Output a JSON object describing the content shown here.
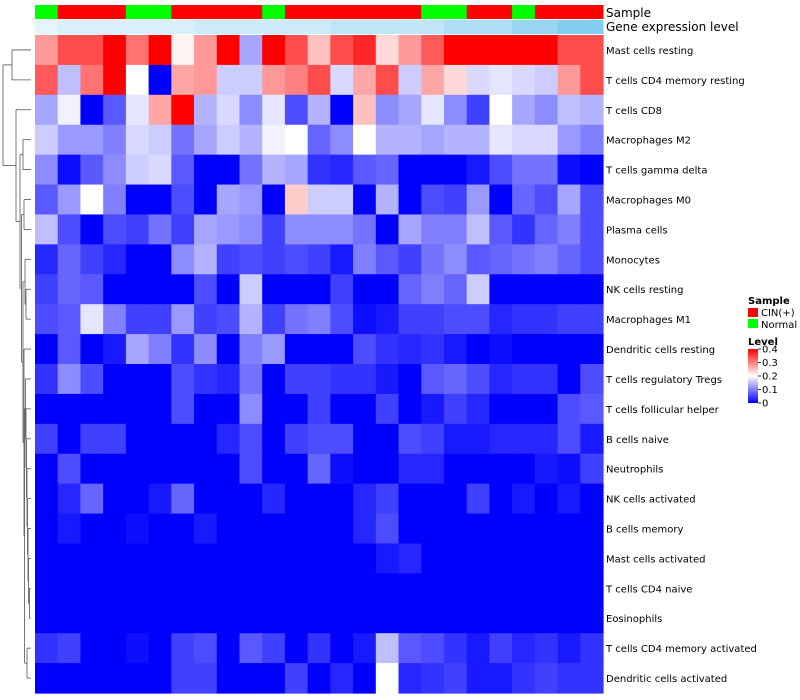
{
  "chart_data": {
    "type": "heatmap",
    "title": "",
    "annotation_tracks": [
      "Sample",
      "Gene expression level"
    ],
    "sample_groups": [
      "Normal",
      "CIN(+)",
      "CIN(+)",
      "CIN(+)",
      "Normal",
      "Normal",
      "CIN(+)",
      "CIN(+)",
      "CIN(+)",
      "CIN(+)",
      "Normal",
      "CIN(+)",
      "CIN(+)",
      "CIN(+)",
      "CIN(+)",
      "CIN(+)",
      "CIN(+)",
      "Normal",
      "Normal",
      "CIN(+)",
      "CIN(+)",
      "Normal",
      "CIN(+)",
      "CIN(+)",
      "CIN(+)"
    ],
    "expression_level_shades": [
      0.06,
      0.14,
      0.14,
      0.14,
      0.14,
      0.14,
      0.14,
      0.22,
      0.22,
      0.22,
      0.22,
      0.22,
      0.22,
      0.3,
      0.3,
      0.3,
      0.3,
      0.3,
      0.42,
      0.42,
      0.42,
      0.55,
      0.55,
      0.68,
      0.68
    ],
    "rows": [
      "Mast cells resting",
      "T cells CD4 memory resting",
      "T cells CD8",
      "Macrophages M2",
      "T cells gamma delta",
      "Macrophages M0",
      "Plasma cells",
      "Monocytes",
      "NK cells resting",
      "Macrophages M1",
      "Dendritic cells resting",
      "T cells regulatory  Tregs",
      "T cells follicular helper",
      "B cells naive",
      "Neutrophils",
      "NK cells activated",
      "B cells memory",
      "Mast cells activated",
      "T cells CD4 naive",
      "Eosinophils",
      "T cells CD4 memory activated",
      "Dendritic cells activated"
    ],
    "values": [
      [
        0.28,
        0.34,
        0.34,
        0.4,
        0.31,
        0.4,
        0.21,
        0.28,
        0.4,
        0.13,
        0.4,
        0.34,
        0.25,
        0.34,
        0.37,
        0.23,
        0.28,
        0.33,
        0.4,
        0.4,
        0.4,
        0.4,
        0.4,
        0.34,
        0.34
      ],
      [
        0.33,
        0.15,
        0.31,
        0.4,
        0.2,
        0.0,
        0.27,
        0.28,
        0.16,
        0.16,
        0.28,
        0.3,
        0.34,
        0.17,
        0.27,
        0.34,
        0.16,
        0.27,
        0.23,
        0.17,
        0.18,
        0.17,
        0.16,
        0.28,
        0.34
      ],
      [
        0.13,
        0.19,
        0.0,
        0.07,
        0.18,
        0.27,
        0.4,
        0.14,
        0.17,
        0.11,
        0.18,
        0.06,
        0.14,
        0.0,
        0.25,
        0.11,
        0.13,
        0.18,
        0.11,
        0.05,
        0.2,
        0.13,
        0.11,
        0.15,
        0.14
      ],
      [
        0.16,
        0.12,
        0.12,
        0.1,
        0.17,
        0.16,
        0.09,
        0.13,
        0.16,
        0.14,
        0.19,
        0.2,
        0.08,
        0.11,
        0.2,
        0.14,
        0.14,
        0.13,
        0.14,
        0.14,
        0.18,
        0.17,
        0.17,
        0.12,
        0.1
      ],
      [
        0.11,
        0.01,
        0.07,
        0.11,
        0.16,
        0.17,
        0.07,
        0.0,
        0.0,
        0.09,
        0.14,
        0.13,
        0.04,
        0.03,
        0.07,
        0.08,
        0.0,
        0.0,
        0.0,
        0.02,
        0.06,
        0.09,
        0.09,
        0.01,
        0.0
      ],
      [
        0.07,
        0.12,
        0.2,
        0.1,
        0.0,
        0.0,
        0.06,
        0.0,
        0.13,
        0.12,
        0.0,
        0.24,
        0.16,
        0.16,
        0.0,
        0.14,
        0.0,
        0.06,
        0.05,
        0.12,
        0.0,
        0.08,
        0.06,
        0.13,
        0.06
      ],
      [
        0.15,
        0.06,
        0.0,
        0.06,
        0.05,
        0.09,
        0.05,
        0.13,
        0.12,
        0.11,
        0.05,
        0.11,
        0.11,
        0.11,
        0.09,
        0.0,
        0.13,
        0.1,
        0.1,
        0.15,
        0.07,
        0.04,
        0.08,
        0.1,
        0.06
      ],
      [
        0.03,
        0.08,
        0.05,
        0.03,
        0.0,
        0.0,
        0.11,
        0.14,
        0.05,
        0.06,
        0.05,
        0.06,
        0.05,
        0.02,
        0.1,
        0.07,
        0.05,
        0.09,
        0.11,
        0.07,
        0.08,
        0.09,
        0.1,
        0.08,
        0.06
      ],
      [
        0.05,
        0.08,
        0.07,
        0.0,
        0.0,
        0.0,
        0.0,
        0.06,
        0.0,
        0.16,
        0.0,
        0.0,
        0.0,
        0.05,
        0.0,
        0.0,
        0.08,
        0.1,
        0.08,
        0.16,
        0.0,
        0.0,
        0.0,
        0.0,
        0.0
      ],
      [
        0.06,
        0.07,
        0.18,
        0.1,
        0.05,
        0.05,
        0.12,
        0.05,
        0.06,
        0.14,
        0.05,
        0.09,
        0.1,
        0.06,
        0.01,
        0.02,
        0.05,
        0.05,
        0.06,
        0.06,
        0.03,
        0.04,
        0.04,
        0.05,
        0.05
      ],
      [
        0.0,
        0.07,
        0.0,
        0.02,
        0.13,
        0.1,
        0.04,
        0.11,
        0.0,
        0.1,
        0.12,
        0.0,
        0.0,
        0.0,
        0.06,
        0.04,
        0.03,
        0.04,
        0.02,
        0.0,
        0.01,
        0.0,
        0.0,
        0.0,
        0.0
      ],
      [
        0.04,
        0.11,
        0.06,
        0.0,
        0.0,
        0.0,
        0.06,
        0.04,
        0.03,
        0.09,
        0.0,
        0.05,
        0.05,
        0.04,
        0.04,
        0.02,
        0.0,
        0.07,
        0.08,
        0.06,
        0.03,
        0.04,
        0.04,
        0.0,
        0.06
      ],
      [
        0.0,
        0.0,
        0.0,
        0.0,
        0.0,
        0.0,
        0.06,
        0.0,
        0.0,
        0.11,
        0.0,
        0.0,
        0.05,
        0.0,
        0.0,
        0.05,
        0.0,
        0.02,
        0.05,
        0.03,
        0.0,
        0.0,
        0.0,
        0.06,
        0.07
      ],
      [
        0.05,
        0.0,
        0.05,
        0.05,
        0.0,
        0.0,
        0.0,
        0.0,
        0.03,
        0.06,
        0.0,
        0.05,
        0.06,
        0.06,
        0.0,
        0.0,
        0.06,
        0.05,
        0.02,
        0.02,
        0.03,
        0.03,
        0.03,
        0.06,
        0.02
      ],
      [
        0.0,
        0.06,
        0.0,
        0.0,
        0.0,
        0.0,
        0.0,
        0.0,
        0.0,
        0.06,
        0.0,
        0.0,
        0.08,
        0.01,
        0.0,
        0.0,
        0.03,
        0.03,
        0.0,
        0.0,
        0.0,
        0.0,
        0.02,
        0.01,
        0.05
      ],
      [
        0.0,
        0.03,
        0.08,
        0.0,
        0.0,
        0.02,
        0.08,
        0.0,
        0.0,
        0.0,
        0.03,
        0.0,
        0.0,
        0.0,
        0.03,
        0.05,
        0.0,
        0.0,
        0.0,
        0.05,
        0.0,
        0.02,
        0.0,
        0.02,
        0.0
      ],
      [
        0.0,
        0.02,
        0.0,
        0.0,
        0.01,
        0.0,
        0.0,
        0.02,
        0.0,
        0.0,
        0.0,
        0.0,
        0.0,
        0.0,
        0.03,
        0.06,
        0.0,
        0.0,
        0.0,
        0.0,
        0.0,
        0.0,
        0.0,
        0.0,
        0.0
      ],
      [
        0.0,
        0.0,
        0.0,
        0.0,
        0.0,
        0.0,
        0.0,
        0.0,
        0.0,
        0.0,
        0.0,
        0.0,
        0.0,
        0.0,
        0.0,
        0.02,
        0.03,
        0.0,
        0.0,
        0.0,
        0.0,
        0.0,
        0.0,
        0.0,
        0.0
      ],
      [
        0.0,
        0.0,
        0.0,
        0.0,
        0.0,
        0.0,
        0.0,
        0.0,
        0.0,
        0.0,
        0.0,
        0.0,
        0.0,
        0.0,
        0.0,
        0.0,
        0.0,
        0.0,
        0.0,
        0.0,
        0.0,
        0.0,
        0.0,
        0.0,
        0.0
      ],
      [
        0.0,
        0.0,
        0.0,
        0.0,
        0.0,
        0.0,
        0.0,
        0.0,
        0.0,
        0.0,
        0.0,
        0.0,
        0.0,
        0.0,
        0.0,
        0.0,
        0.0,
        0.0,
        0.0,
        0.0,
        0.0,
        0.0,
        0.0,
        0.0,
        0.0
      ],
      [
        0.04,
        0.05,
        0.0,
        0.0,
        0.01,
        0.0,
        0.05,
        0.06,
        0.0,
        0.07,
        0.05,
        0.0,
        0.04,
        0.0,
        0.02,
        0.15,
        0.07,
        0.06,
        0.04,
        0.02,
        0.05,
        0.03,
        0.04,
        0.02,
        0.04
      ],
      [
        0.0,
        0.0,
        0.0,
        0.0,
        0.0,
        0.0,
        0.05,
        0.05,
        0.0,
        0.0,
        0.0,
        0.05,
        0.0,
        0.03,
        0.0,
        0.2,
        0.03,
        0.04,
        0.05,
        0.02,
        0.02,
        0.04,
        0.05,
        0.04,
        0.04
      ]
    ],
    "colorscale": {
      "min": 0,
      "max": 0.4,
      "low": "#0000ff",
      "mid": "#ffffff",
      "high": "#ff0000",
      "midpoint": 0.2
    },
    "legends": {
      "sample": {
        "title": "Sample",
        "items": [
          {
            "label": "CIN(+)",
            "color": "#ff0000"
          },
          {
            "label": "Normal",
            "color": "#00ff00"
          }
        ]
      },
      "level": {
        "title": "Level",
        "ticks": [
          0.4,
          0.3,
          0.2,
          0.1,
          0
        ],
        "tick_labels": [
          "0.4",
          "0.3",
          "0.2",
          "0.1",
          "0"
        ]
      }
    }
  }
}
